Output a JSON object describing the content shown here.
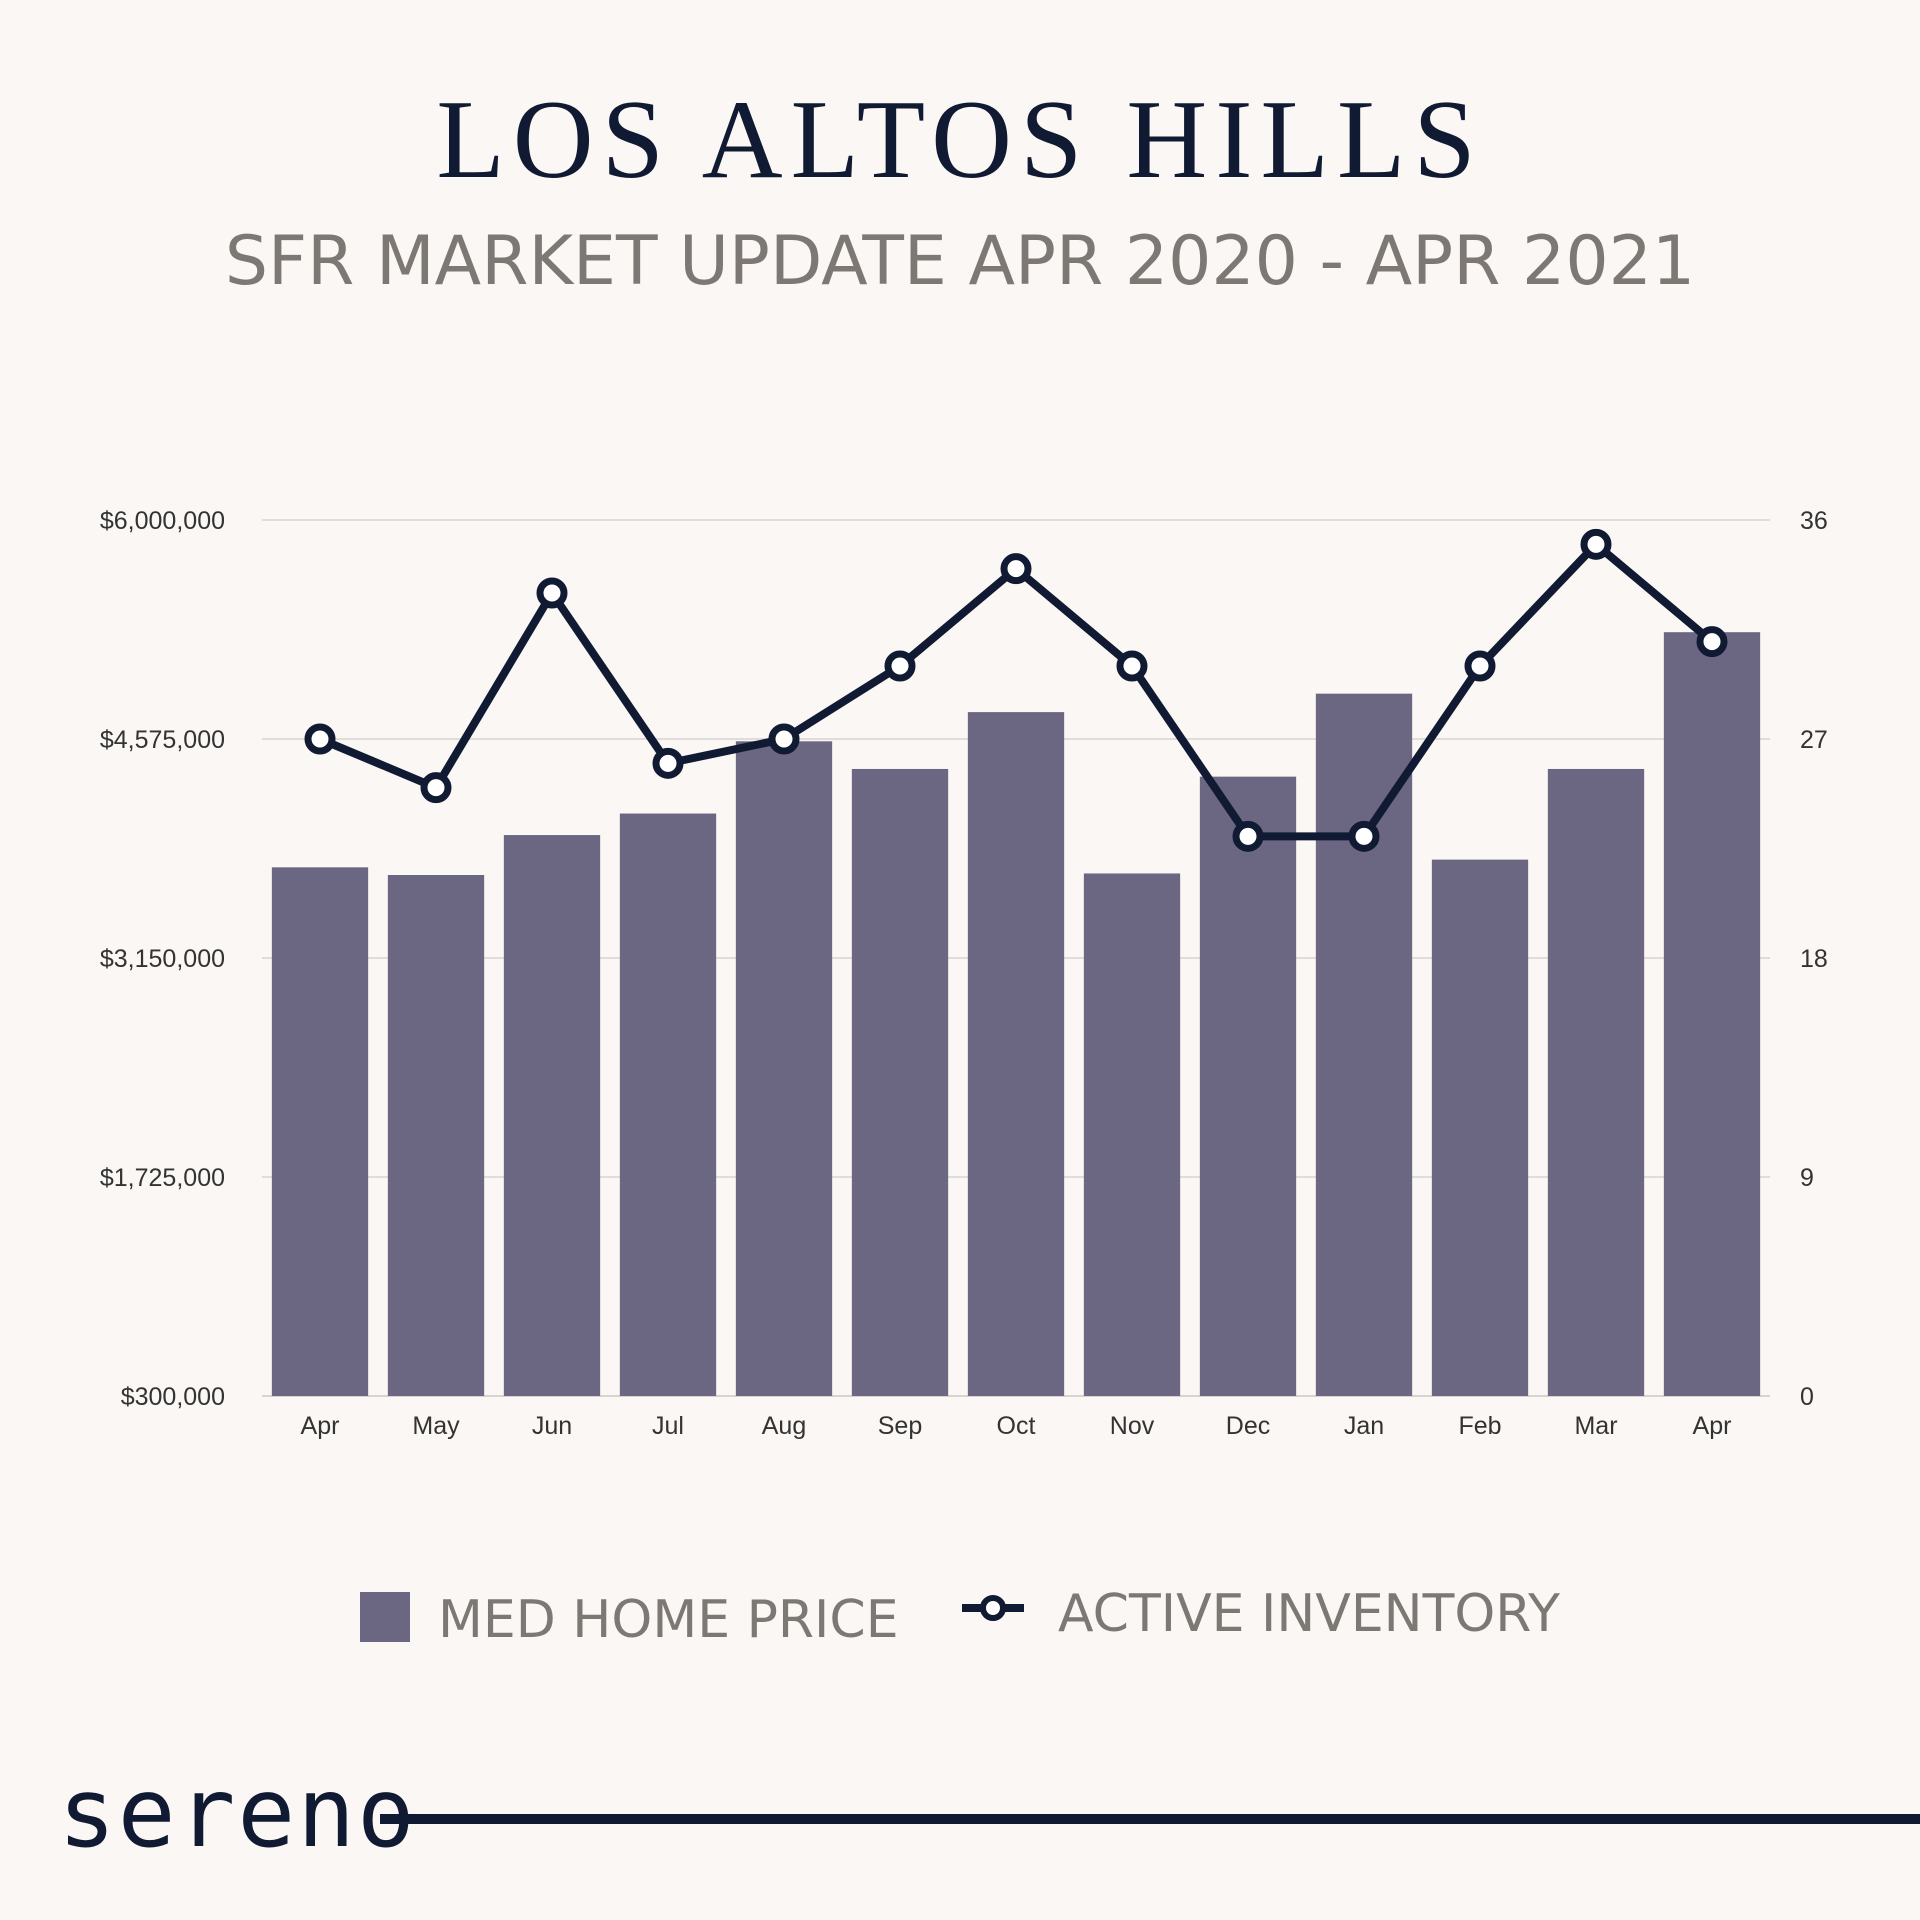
{
  "header": {
    "title": "LOS ALTOS HILLS",
    "subtitle": "SFR MARKET UPDATE APR 2020 - APR 2021"
  },
  "legend": {
    "bar_label": "MED HOME PRICE",
    "line_label": "ACTIVE INVENTORY"
  },
  "brand": {
    "name": "sereno"
  },
  "colors": {
    "bar": "#6b6782",
    "line": "#111a33",
    "grid": "#d6d3d0",
    "background": "#faf7f4"
  },
  "chart_data": {
    "type": "bar",
    "categories": [
      "Apr",
      "May",
      "Jun",
      "Jul",
      "Aug",
      "Sep",
      "Oct",
      "Nov",
      "Dec",
      "Jan",
      "Feb",
      "Mar",
      "Apr"
    ],
    "series": [
      {
        "name": "MED HOME PRICE",
        "type": "bar",
        "axis": "left",
        "values": [
          3740000,
          3690000,
          3950000,
          4090000,
          4560000,
          4380000,
          4750000,
          3700000,
          4330000,
          4870000,
          3790000,
          4380000,
          5270000
        ]
      },
      {
        "name": "ACTIVE INVENTORY",
        "type": "line",
        "axis": "right",
        "values": [
          27,
          25,
          33,
          26,
          27,
          30,
          34,
          30,
          23,
          23,
          30,
          35,
          31
        ]
      }
    ],
    "y_left": {
      "ylim": [
        300000,
        6000000
      ],
      "ticks": [
        300000,
        1725000,
        3150000,
        4575000,
        6000000
      ],
      "tick_labels": [
        "$300,000",
        "$1,725,000",
        "$3,150,000",
        "$4,575,000",
        "$6,000,000"
      ]
    },
    "y_right": {
      "ylim": [
        0,
        36
      ],
      "ticks": [
        0,
        9,
        18,
        27,
        36
      ],
      "tick_labels": [
        "0",
        "9",
        "18",
        "27",
        "36"
      ]
    },
    "grid": true,
    "legend_position": "bottom-center"
  }
}
